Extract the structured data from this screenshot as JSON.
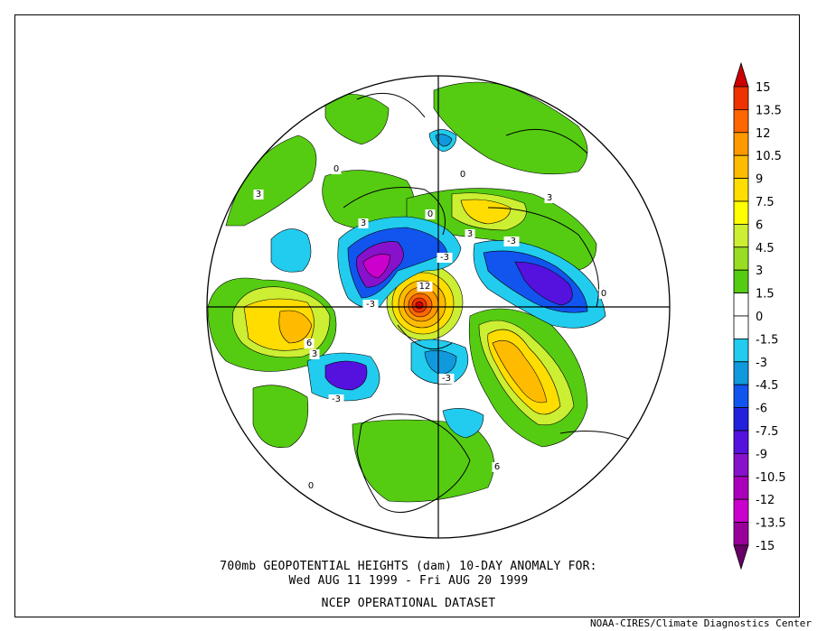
{
  "title": {
    "line1": "700mb GEOPOTENTIAL HEIGHTS (dam)   10-DAY ANOMALY FOR:",
    "line2": "Wed AUG 11 1999 - Fri AUG 20 1999",
    "line3": "NCEP OPERATIONAL DATASET"
  },
  "credit": "NOAA-CIRES/Climate Diagnostics Center",
  "colorbar": {
    "labels": [
      "15",
      "13.5",
      "12",
      "10.5",
      "9",
      "7.5",
      "6",
      "4.5",
      "3",
      "1.5",
      "0",
      "-1.5",
      "-3",
      "-4.5",
      "-6",
      "-7.5",
      "-9",
      "-10.5",
      "-12",
      "-13.5",
      "-15"
    ],
    "colors": [
      "#cc0000",
      "#ee3300",
      "#ff6600",
      "#ff9900",
      "#ffbb00",
      "#ffdd00",
      "#ffff00",
      "#ccee33",
      "#99dd22",
      "#55cc11",
      "#ffffff",
      "#ffffff",
      "#22ccee",
      "#1199dd",
      "#1155ee",
      "#2222dd",
      "#5511dd",
      "#8811cc",
      "#aa00bb",
      "#cc00cc",
      "#990099",
      "#660066"
    ]
  },
  "contour_labels": [
    "3",
    "3",
    "3",
    "3",
    "3",
    "6",
    "12",
    "-3",
    "-3",
    "-3",
    "-3",
    "-3",
    "0",
    "0",
    "0",
    "0",
    "0",
    "6"
  ]
}
